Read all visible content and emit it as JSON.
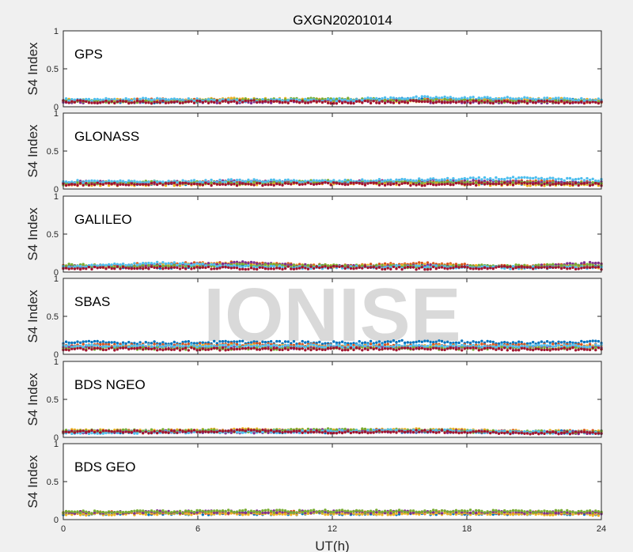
{
  "chart_data": {
    "type": "scatter",
    "title": "GXGN20201014",
    "xlabel": "UT(h)",
    "ylabel": "S4 Index",
    "xlim": [
      0,
      24
    ],
    "ylim": [
      0,
      1
    ],
    "xticks": [
      "0",
      "6",
      "12",
      "18",
      "24"
    ],
    "yticks": [
      "0",
      "0.5",
      "1"
    ],
    "grid": false,
    "watermark": "IONISE",
    "series_colors": [
      "#0072bd",
      "#d95319",
      "#edb120",
      "#7e2f8e",
      "#77ac30",
      "#4dbeee",
      "#a2142f"
    ],
    "panels": [
      {
        "label": "GPS",
        "series": [
          {
            "x": [
              0,
              4,
              8,
              12,
              16,
              20,
              24
            ],
            "y": [
              0.08,
              0.06,
              0.09,
              0.08,
              0.1,
              0.09,
              0.08
            ]
          },
          {
            "x": [
              0,
              4,
              8,
              12,
              16,
              20,
              24
            ],
            "y": [
              0.07,
              0.09,
              0.08,
              0.07,
              0.09,
              0.08,
              0.07
            ]
          },
          {
            "x": [
              0,
              4,
              8,
              12,
              16,
              20,
              24
            ],
            "y": [
              0.09,
              0.08,
              0.1,
              0.09,
              0.08,
              0.1,
              0.09
            ]
          },
          {
            "x": [
              0,
              4,
              8,
              12,
              16,
              20,
              24
            ],
            "y": [
              0.06,
              0.07,
              0.06,
              0.08,
              0.07,
              0.06,
              0.07
            ]
          },
          {
            "x": [
              0,
              4,
              8,
              12,
              16,
              20,
              24
            ],
            "y": [
              0.08,
              0.07,
              0.09,
              0.1,
              0.09,
              0.07,
              0.08
            ]
          },
          {
            "x": [
              0,
              4,
              8,
              12,
              16,
              20,
              24
            ],
            "y": [
              0.09,
              0.1,
              0.08,
              0.09,
              0.12,
              0.11,
              0.09
            ]
          },
          {
            "x": [
              0,
              4,
              8,
              12,
              16,
              20,
              24
            ],
            "y": [
              0.07,
              0.06,
              0.07,
              0.06,
              0.07,
              0.06,
              0.06
            ]
          }
        ]
      },
      {
        "label": "GLONASS",
        "series": [
          {
            "x": [
              0,
              4,
              8,
              12,
              16,
              20,
              24
            ],
            "y": [
              0.08,
              0.07,
              0.08,
              0.09,
              0.08,
              0.08,
              0.07
            ]
          },
          {
            "x": [
              0,
              4,
              8,
              12,
              16,
              20,
              24
            ],
            "y": [
              0.07,
              0.08,
              0.09,
              0.08,
              0.09,
              0.1,
              0.08
            ]
          },
          {
            "x": [
              0,
              4,
              8,
              12,
              16,
              20,
              24
            ],
            "y": [
              0.06,
              0.06,
              0.07,
              0.08,
              0.07,
              0.06,
              0.06
            ]
          },
          {
            "x": [
              0,
              4,
              8,
              12,
              16,
              20,
              24
            ],
            "y": [
              0.09,
              0.08,
              0.1,
              0.09,
              0.11,
              0.09,
              0.09
            ]
          },
          {
            "x": [
              0,
              4,
              8,
              12,
              16,
              20,
              24
            ],
            "y": [
              0.07,
              0.09,
              0.08,
              0.1,
              0.09,
              0.08,
              0.07
            ]
          },
          {
            "x": [
              0,
              4,
              8,
              12,
              16,
              20,
              24
            ],
            "y": [
              0.1,
              0.09,
              0.11,
              0.1,
              0.12,
              0.14,
              0.12
            ]
          },
          {
            "x": [
              0,
              4,
              8,
              12,
              16,
              20,
              24
            ],
            "y": [
              0.06,
              0.07,
              0.06,
              0.07,
              0.06,
              0.07,
              0.06
            ]
          }
        ]
      },
      {
        "label": "GALILEO",
        "series": [
          {
            "x": [
              0,
              4,
              8,
              12,
              16,
              20,
              24
            ],
            "y": [
              0.07,
              0.06,
              0.08,
              0.07,
              0.08,
              0.07,
              0.08
            ]
          },
          {
            "x": [
              0,
              4,
              8,
              12,
              16,
              20,
              24
            ],
            "y": [
              0.08,
              0.1,
              0.12,
              0.08,
              0.11,
              0.07,
              0.1
            ]
          },
          {
            "x": [
              0,
              4,
              8,
              12,
              16,
              20,
              24
            ],
            "y": [
              0.06,
              0.09,
              0.11,
              0.07,
              0.09,
              0.06,
              0.07
            ]
          },
          {
            "x": [
              0,
              4,
              8,
              12,
              16,
              20,
              24
            ],
            "y": [
              0.07,
              0.08,
              0.12,
              0.07,
              0.08,
              0.06,
              0.12
            ]
          },
          {
            "x": [
              0,
              4,
              8,
              12,
              16,
              20,
              24
            ],
            "y": [
              0.09,
              0.07,
              0.09,
              0.08,
              0.07,
              0.08,
              0.09
            ]
          },
          {
            "x": [
              0,
              4,
              8,
              12,
              16,
              20,
              24
            ],
            "y": [
              0.06,
              0.12,
              0.07,
              0.06,
              0.07,
              0.06,
              0.06
            ]
          },
          {
            "x": [
              0,
              4,
              8,
              12,
              16,
              20,
              24
            ],
            "y": [
              0.05,
              0.06,
              0.05,
              0.06,
              0.05,
              0.06,
              0.05
            ]
          }
        ]
      },
      {
        "label": "SBAS",
        "series": [
          {
            "x": [
              0,
              4,
              8,
              12,
              16,
              20,
              24
            ],
            "y": [
              0.16,
              0.15,
              0.16,
              0.15,
              0.17,
              0.15,
              0.16
            ]
          },
          {
            "x": [
              0,
              4,
              8,
              12,
              16,
              20,
              24
            ],
            "y": [
              0.12,
              0.12,
              0.13,
              0.12,
              0.12,
              0.12,
              0.12
            ]
          },
          {
            "x": [
              0,
              4,
              8,
              12,
              16,
              20,
              24
            ],
            "y": [
              0.1,
              0.1,
              0.11,
              0.1,
              0.1,
              0.1,
              0.1
            ]
          },
          {
            "x": [
              0,
              4,
              8,
              12,
              16,
              20,
              24
            ],
            "y": [
              0.09,
              0.09,
              0.09,
              0.09,
              0.09,
              0.09,
              0.09
            ]
          },
          {
            "x": [
              0,
              4,
              8,
              12,
              16,
              20,
              24
            ],
            "y": [
              0.08,
              0.08,
              0.08,
              0.08,
              0.08,
              0.08,
              0.08
            ]
          },
          {
            "x": [
              0,
              4,
              8,
              12,
              16,
              20,
              24
            ],
            "y": [
              0.11,
              0.11,
              0.11,
              0.11,
              0.11,
              0.11,
              0.11
            ]
          },
          {
            "x": [
              0,
              4,
              8,
              12,
              16,
              20,
              24
            ],
            "y": [
              0.07,
              0.07,
              0.07,
              0.07,
              0.07,
              0.07,
              0.07
            ]
          }
        ]
      },
      {
        "label": "BDS NGEO",
        "series": [
          {
            "x": [
              0,
              4,
              8,
              12,
              16,
              20,
              24
            ],
            "y": [
              0.08,
              0.07,
              0.08,
              0.07,
              0.08,
              0.07,
              0.07
            ]
          },
          {
            "x": [
              0,
              4,
              8,
              12,
              16,
              20,
              24
            ],
            "y": [
              0.07,
              0.08,
              0.09,
              0.08,
              0.09,
              0.08,
              0.08
            ]
          },
          {
            "x": [
              0,
              4,
              8,
              12,
              16,
              20,
              24
            ],
            "y": [
              0.09,
              0.08,
              0.1,
              0.09,
              0.1,
              0.08,
              0.07
            ]
          },
          {
            "x": [
              0,
              4,
              8,
              12,
              16,
              20,
              24
            ],
            "y": [
              0.07,
              0.08,
              0.07,
              0.09,
              0.08,
              0.07,
              0.06
            ]
          },
          {
            "x": [
              0,
              4,
              8,
              12,
              16,
              20,
              24
            ],
            "y": [
              0.08,
              0.09,
              0.08,
              0.1,
              0.09,
              0.07,
              0.07
            ]
          },
          {
            "x": [
              0,
              4,
              8,
              12,
              16,
              20,
              24
            ],
            "y": [
              0.06,
              0.07,
              0.07,
              0.08,
              0.09,
              0.07,
              0.06
            ]
          },
          {
            "x": [
              0,
              4,
              8,
              12,
              16,
              20,
              24
            ],
            "y": [
              0.08,
              0.07,
              0.09,
              0.07,
              0.08,
              0.06,
              0.06
            ]
          }
        ]
      },
      {
        "label": "BDS GEO",
        "series": [
          {
            "x": [
              0,
              4,
              8,
              12,
              16,
              20,
              24
            ],
            "y": [
              0.08,
              0.08,
              0.08,
              0.08,
              0.08,
              0.08,
              0.08
            ]
          },
          {
            "x": [
              0,
              4,
              8,
              12,
              16,
              20,
              24
            ],
            "y": [
              0.09,
              0.09,
              0.09,
              0.1,
              0.09,
              0.09,
              0.09
            ]
          },
          {
            "x": [
              0,
              4,
              8,
              12,
              16,
              20,
              24
            ],
            "y": [
              0.07,
              0.08,
              0.08,
              0.08,
              0.08,
              0.08,
              0.07
            ]
          },
          {
            "x": [
              0,
              4,
              8,
              12,
              16,
              20,
              24
            ],
            "y": [
              0.09,
              0.1,
              0.1,
              0.1,
              0.1,
              0.1,
              0.09
            ]
          },
          {
            "x": [
              0,
              4,
              8,
              12,
              16,
              20,
              24
            ],
            "y": [
              0.1,
              0.1,
              0.11,
              0.11,
              0.11,
              0.11,
              0.1
            ]
          }
        ]
      }
    ]
  }
}
